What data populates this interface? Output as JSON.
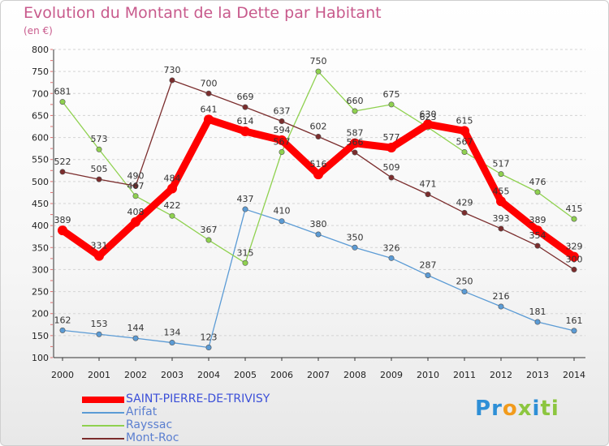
{
  "chart": {
    "title": "Evolution du Montant de la Dette par Habitant",
    "unit": "(en €)"
  },
  "chart_data": {
    "type": "line",
    "title": "Evolution du Montant de la Dette par Habitant",
    "subtitle": "(en €)",
    "x": [
      2000,
      2001,
      2002,
      2003,
      2004,
      2005,
      2006,
      2007,
      2008,
      2009,
      2010,
      2011,
      2012,
      2013,
      2014
    ],
    "ylim": [
      100,
      800
    ],
    "yticks": [
      100,
      150,
      200,
      250,
      300,
      350,
      400,
      450,
      500,
      550,
      600,
      650,
      700,
      750,
      800
    ],
    "grid": "horizontal dashed",
    "legend_position": "bottom-left",
    "series": [
      {
        "name": "SAINT-PIERRE-DE-TRIVISY",
        "color": "#ff0000",
        "highlight": true,
        "values": [
          389,
          331,
          408,
          484,
          641,
          614,
          594,
          516,
          587,
          577,
          630,
          615,
          455,
          389,
          329
        ]
      },
      {
        "name": "Arifat",
        "color": "#5b9bd5",
        "highlight": false,
        "values": [
          162,
          153,
          144,
          134,
          123,
          437,
          410,
          380,
          350,
          326,
          287,
          250,
          216,
          181,
          161
        ]
      },
      {
        "name": "Rayssac",
        "color": "#8fd14f",
        "highlight": false,
        "values": [
          681,
          573,
          467,
          422,
          367,
          315,
          567,
          750,
          660,
          675,
          623,
          567,
          517,
          476,
          415
        ]
      },
      {
        "name": "Mont-Roc",
        "color": "#7b2d2d",
        "highlight": false,
        "values": [
          522,
          505,
          490,
          730,
          700,
          669,
          637,
          602,
          566,
          509,
          471,
          429,
          393,
          354,
          300
        ]
      }
    ]
  },
  "brand": {
    "letters": [
      "P",
      "r",
      "o",
      "x",
      "i",
      "t",
      "i"
    ],
    "colors": [
      "#2e8fd6",
      "#2e8fd6",
      "#f29b1c",
      "#8cc63f",
      "#2e8fd6",
      "#8cc63f",
      "#8cc63f"
    ]
  }
}
